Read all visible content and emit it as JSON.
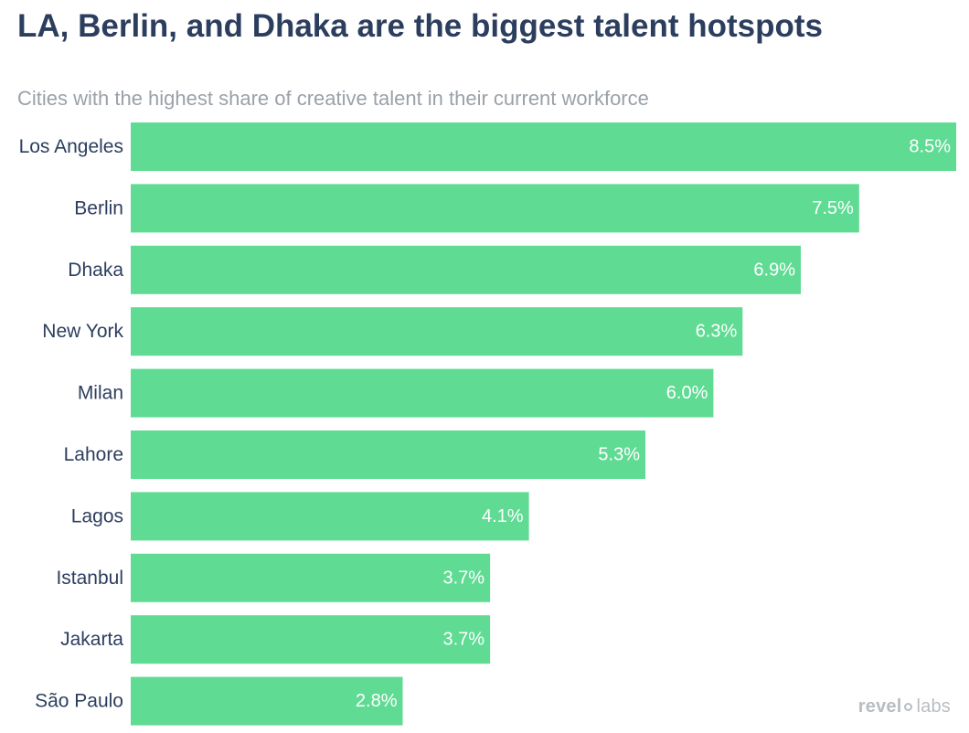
{
  "chart_data": {
    "type": "bar",
    "orientation": "horizontal",
    "title": "LA, Berlin, and Dhaka are the biggest talent hotspots",
    "subtitle": "Cities with the highest share of creative talent in their current workforce",
    "categories": [
      "Los Angeles",
      "Berlin",
      "Dhaka",
      "New York",
      "Milan",
      "Lahore",
      "Lagos",
      "Istanbul",
      "Jakarta",
      "São Paulo"
    ],
    "values": [
      8.5,
      7.5,
      6.9,
      6.3,
      6.0,
      5.3,
      4.1,
      3.7,
      3.7,
      2.8
    ],
    "value_labels": [
      "8.5%",
      "7.5%",
      "6.9%",
      "6.3%",
      "6.0%",
      "5.3%",
      "4.1%",
      "3.7%",
      "3.7%",
      "2.8%"
    ],
    "xlim": [
      0,
      8.5
    ],
    "xlabel": "",
    "ylabel": "",
    "grid": false,
    "bar_color": "#5fdb93",
    "label_color": "#2c3e5e"
  },
  "branding": {
    "part1": "revel",
    "part2": "labs"
  }
}
